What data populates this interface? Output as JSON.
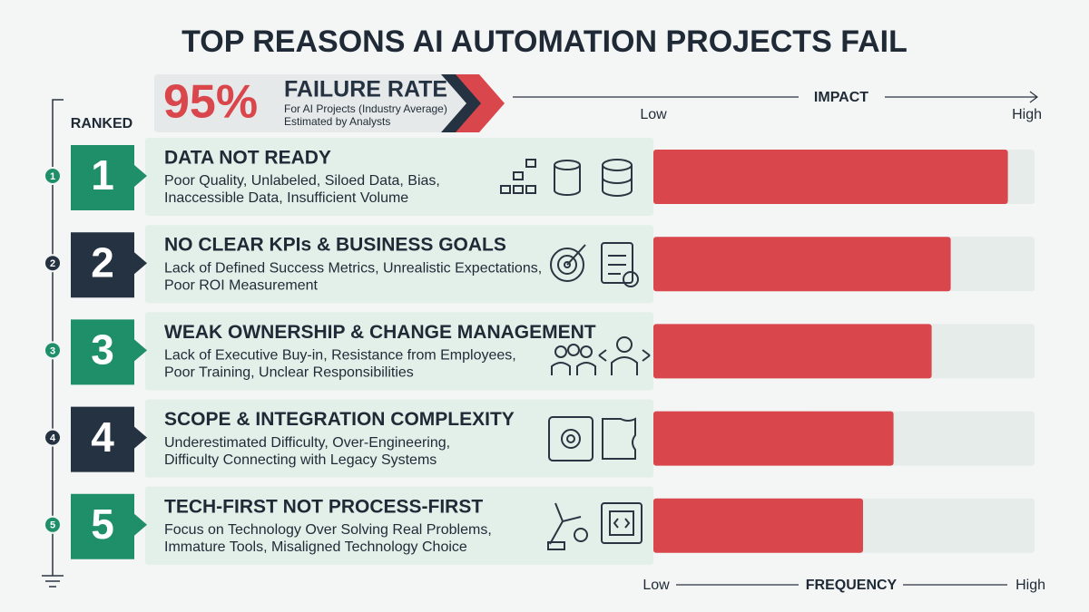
{
  "title": "TOP REASONS AI AUTOMATION PROJECTS FAIL",
  "badge": {
    "headline": "95%",
    "title": "FAILURE RATE",
    "note1": "For AI Projects (Industry Average)",
    "note2": "Estimated by Analysts"
  },
  "ranked_label": "RANKED",
  "chart_data": {
    "type": "hbar",
    "ranks": [
      1,
      2,
      3,
      4,
      5
    ],
    "categories": [
      "DATA NOT READY",
      "NO CLEAR KPIs & BUSINESS GOALS",
      "WEAK OWNERSHIP & CHANGE MANAGEMENT",
      "SCOPE & INTEGRATION COMPLEXITY",
      "TECH-FIRST NOT PROCESS-FIRST"
    ],
    "descriptions": [
      [
        "Poor Quality, Unlabeled, Siloed Data, Bias,",
        "Inaccessible Data, Insufficient Volume"
      ],
      [
        "Lack of Defined Success Metrics, Unrealistic Expectations,",
        "Poor ROI Measurement"
      ],
      [
        "Lack of Executive Buy-in, Resistance from Employees,",
        "Poor Training, Unclear Responsibilities"
      ],
      [
        "Underestimated Difficulty, Over-Engineering,",
        "Difficulty Connecting with Legacy Systems"
      ],
      [
        "Focus on Technology Over Solving Real Problems,",
        "Immature Tools, Misaligned Technology Choice"
      ]
    ],
    "values": [
      93,
      78,
      73,
      63,
      55
    ],
    "color": "#d9474c",
    "rank_colors": [
      "#1f8f6a",
      "#253241",
      "#1f8f6a",
      "#253241",
      "#1f8f6a"
    ],
    "xlim": [
      0,
      100
    ],
    "x2label": "IMPACT",
    "x2ticks": [
      {
        "value": 0,
        "label": "Low"
      },
      {
        "value": 100,
        "label": "High"
      }
    ],
    "xlabel": "FREQUENCY",
    "xticks": [
      {
        "value": 0,
        "label": "Low"
      },
      {
        "value": 100,
        "label": "High"
      }
    ]
  }
}
